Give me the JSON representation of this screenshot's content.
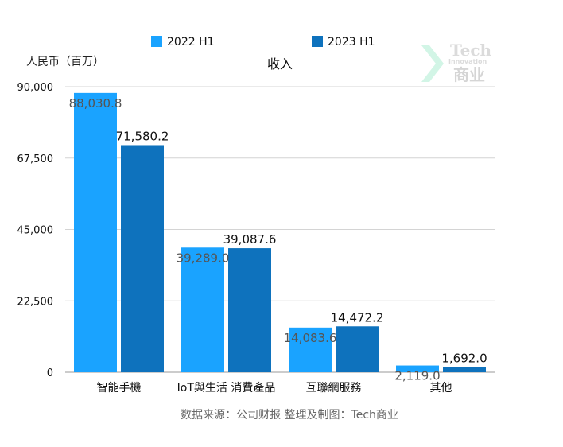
{
  "chart_data": {
    "type": "bar",
    "title": "收入",
    "ylabel": "人民币（百万）",
    "categories": [
      "智能手機",
      "IoT與生活 消費產品",
      "互聯網服務",
      "其他"
    ],
    "series": [
      {
        "name": "2022 H1",
        "color": "#1aa3ff",
        "values": [
          88030.8,
          39289.0,
          14083.6,
          2119.0
        ],
        "labels": [
          "88,030.8",
          "39,289.0",
          "14,083.6",
          "2,119.0"
        ]
      },
      {
        "name": "2023 H1",
        "color": "#0e72bd",
        "values": [
          71580.2,
          39087.6,
          14472.2,
          1692.0
        ],
        "labels": [
          "71,580.2",
          "39,087.6",
          "14,472.2",
          "1,692.0"
        ]
      }
    ],
    "ylim": [
      0,
      90000
    ],
    "yticks": [
      "0",
      "22,500",
      "45,000",
      "67,500",
      "90,000"
    ],
    "ytick_values": [
      0,
      22500,
      45000,
      67500,
      90000
    ],
    "grid": true,
    "legend": "top"
  },
  "source": "数据来源：公司财报 整理及制图：Tech商业",
  "watermark": {
    "line1": "Tech",
    "line2": "Innovation",
    "line3": "商业"
  }
}
